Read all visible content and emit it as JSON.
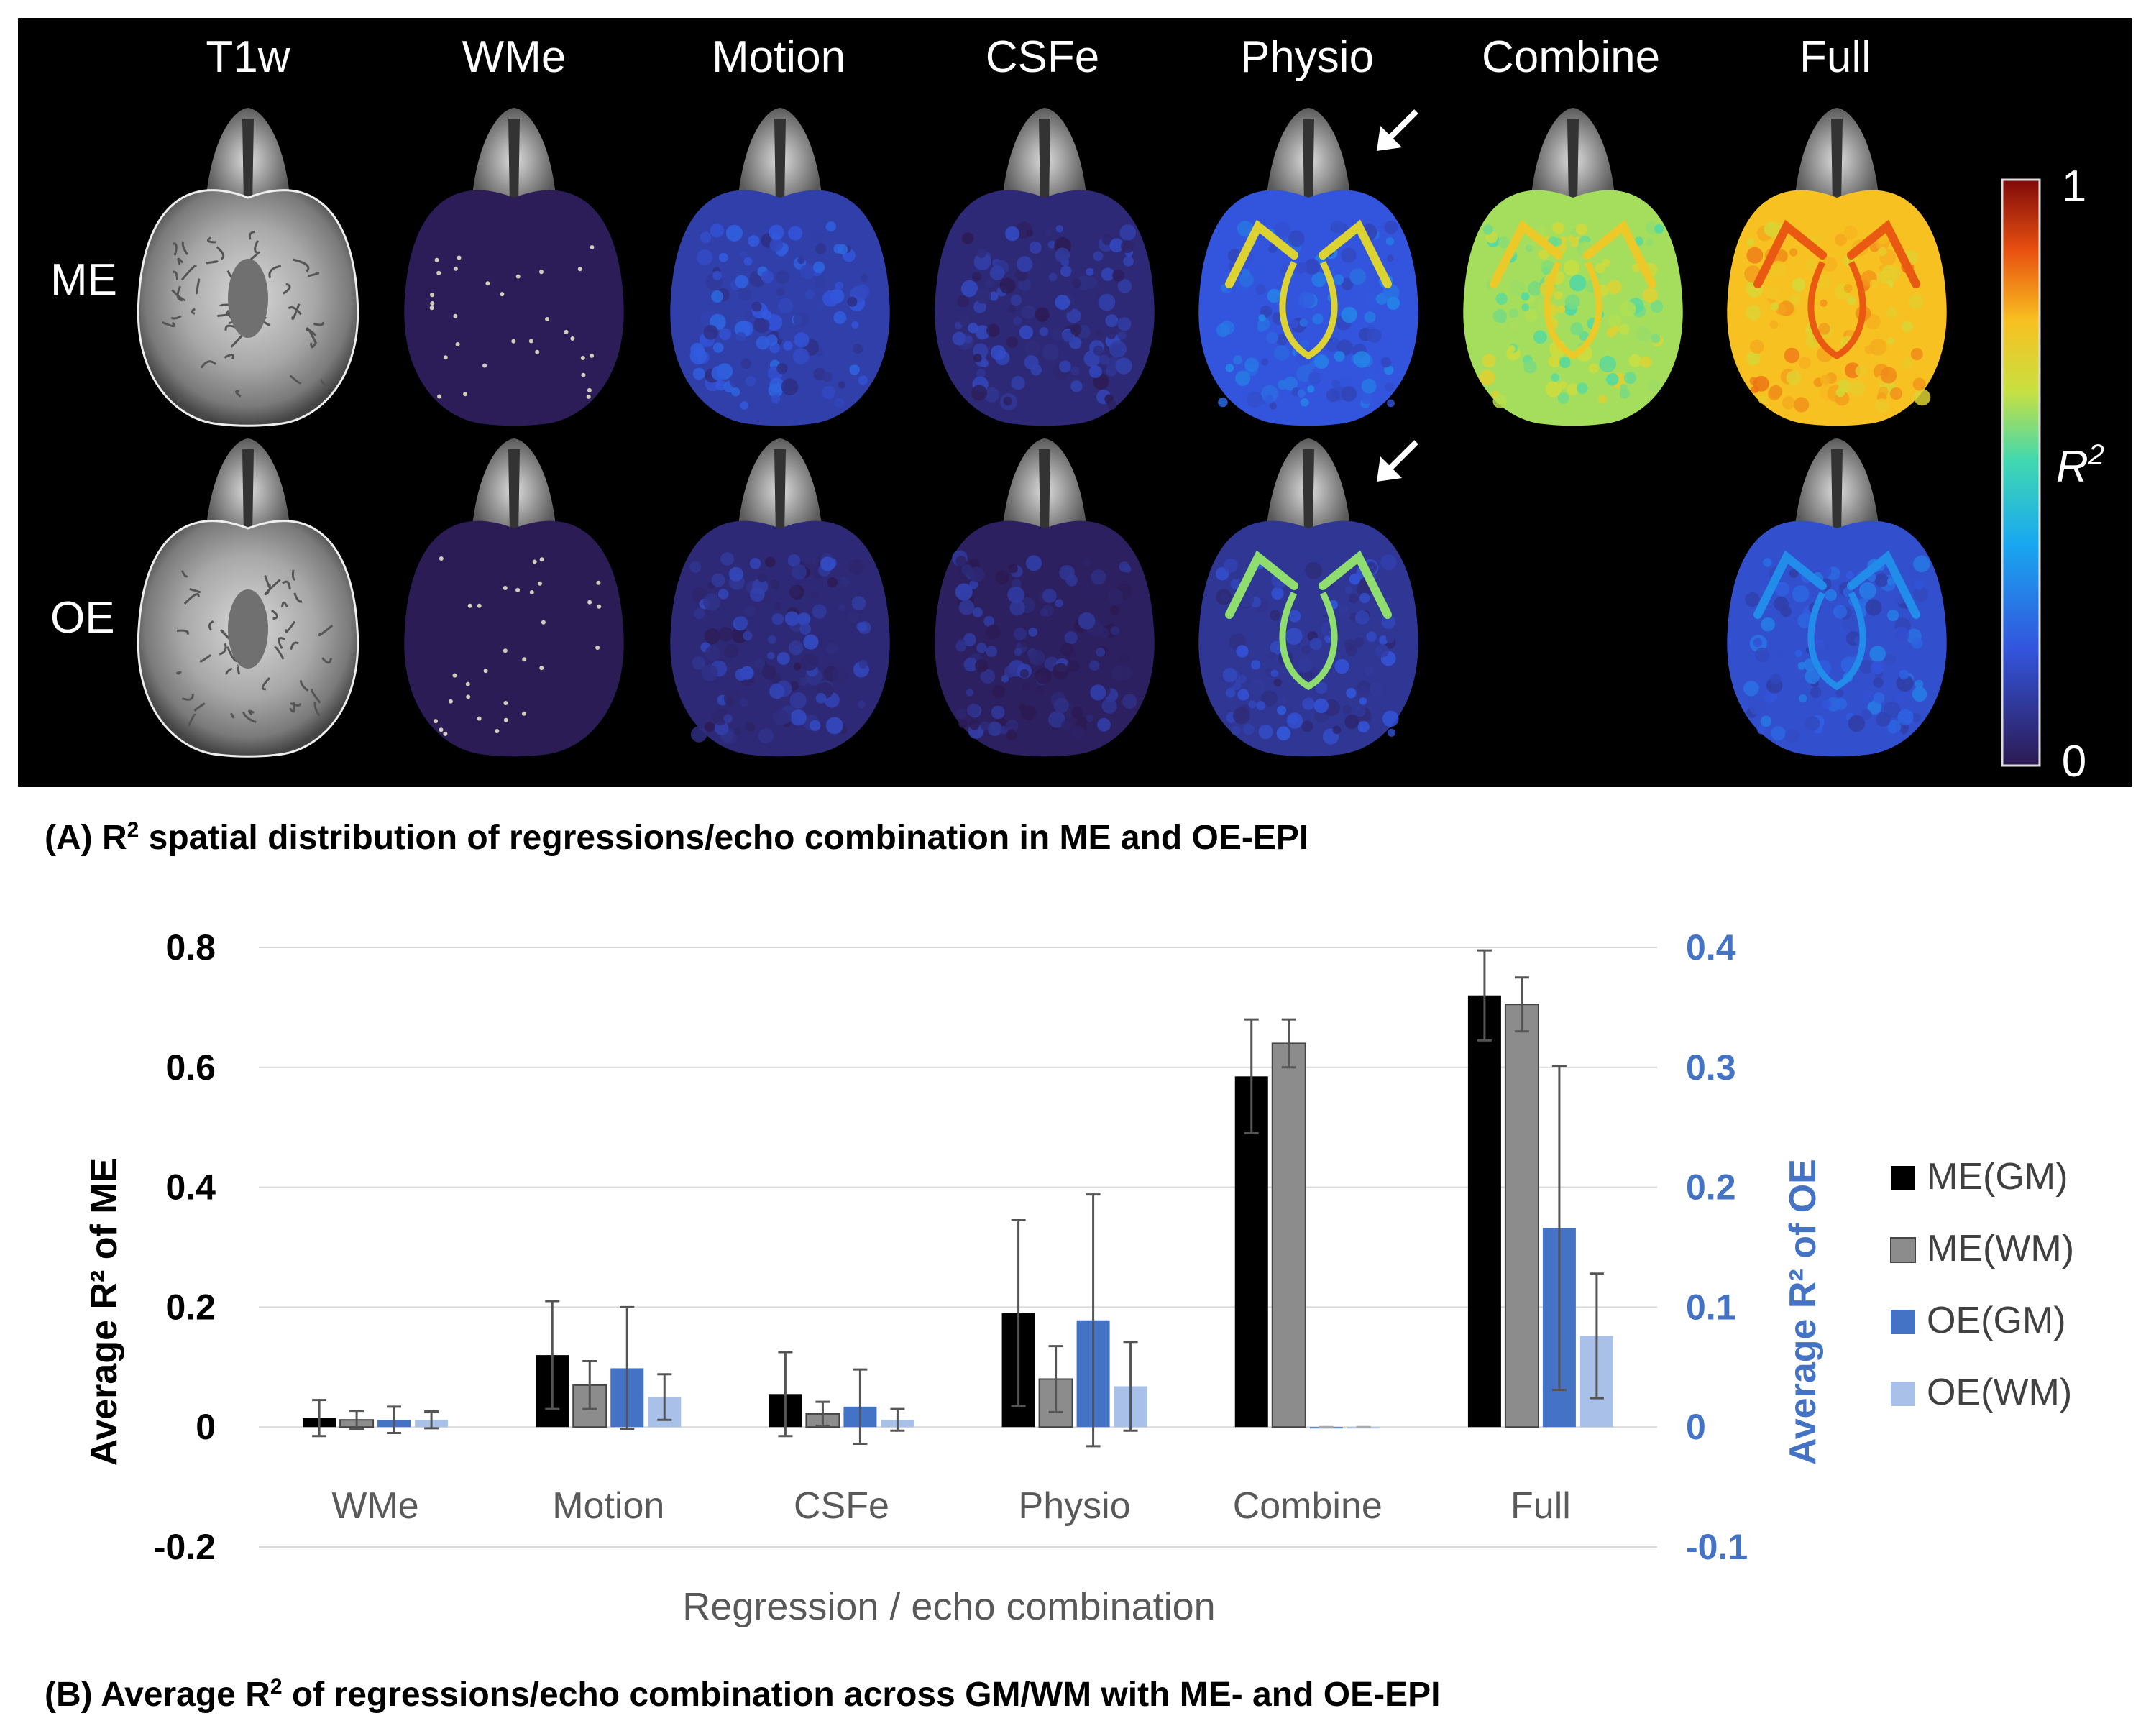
{
  "panel_a": {
    "column_labels": [
      "T1w",
      "WMe",
      "Motion",
      "CSFe",
      "Physio",
      "Combine",
      "Full"
    ],
    "row_labels": [
      "ME",
      "OE"
    ],
    "colorbar": {
      "max_label": "1",
      "min_label": "0",
      "axis_label": "R",
      "axis_label_sup": "2"
    },
    "caption_lead": "(A) R",
    "caption_sup": "2",
    "caption_rest": " spatial distribution of regressions/echo combination in ME and OE-EPI",
    "maps": [
      {
        "row": "ME",
        "column": "WMe",
        "mean": 0.01
      },
      {
        "row": "ME",
        "column": "Motion",
        "mean": 0.12
      },
      {
        "row": "ME",
        "column": "CSFe",
        "mean": 0.05
      },
      {
        "row": "ME",
        "column": "Physio",
        "mean": 0.19
      },
      {
        "row": "ME",
        "column": "Combine",
        "mean": 0.58
      },
      {
        "row": "ME",
        "column": "Full",
        "mean": 0.72
      },
      {
        "row": "OE",
        "column": "WMe",
        "mean": 0.005
      },
      {
        "row": "OE",
        "column": "Motion",
        "mean": 0.05
      },
      {
        "row": "OE",
        "column": "CSFe",
        "mean": 0.02
      },
      {
        "row": "OE",
        "column": "Physio",
        "mean": 0.09
      },
      {
        "row": "OE",
        "column": "Full",
        "mean": 0.17
      }
    ]
  },
  "panel_b": {
    "caption_lead": "(B) Average R",
    "caption_sup": "2",
    "caption_rest": " of regressions/echo combination across GM/WM with ME- and OE-EPI"
  },
  "colors": {
    "me_gm": "#000000",
    "me_wm": "#8c8c8c",
    "oe_gm": "#4472c4",
    "oe_wm": "#a9c1e8",
    "oe_axis": "#4472c4",
    "grid": "#d9d9d9",
    "category_text": "#595959"
  },
  "chart_data": {
    "type": "bar",
    "title": "",
    "xlabel": "Regression / echo combination",
    "ylabel_left": "Average R² of ME",
    "ylabel_right": "Average R² of OE",
    "ylim_left": [
      -0.2,
      0.8
    ],
    "ylim_right": [
      -0.1,
      0.4
    ],
    "yticks_left": [
      "0.8",
      "0.6",
      "0.4",
      "0.2",
      "0",
      "-0.2"
    ],
    "yticks_right": [
      "0.4",
      "0.3",
      "0.2",
      "0.1",
      "0",
      "-0.1"
    ],
    "grid": true,
    "legend_position": "right",
    "categories": [
      "WMe",
      "Motion",
      "CSFe",
      "Physio",
      "Combine",
      "Full"
    ],
    "series": [
      {
        "name": "ME(GM)",
        "axis": "left",
        "values": [
          0.015,
          0.12,
          0.055,
          0.19,
          0.585,
          0.72
        ],
        "errors": [
          0.03,
          0.09,
          0.07,
          0.155,
          0.095,
          0.075
        ]
      },
      {
        "name": "ME(WM)",
        "axis": "left",
        "values": [
          0.012,
          0.07,
          0.022,
          0.08,
          0.64,
          0.705
        ],
        "errors": [
          0.015,
          0.04,
          0.02,
          0.055,
          0.04,
          0.045
        ]
      },
      {
        "name": "OE(GM)",
        "axis": "right",
        "values": [
          0.006,
          0.049,
          0.017,
          0.089,
          0.0,
          0.166
        ],
        "errors": [
          0.011,
          0.051,
          0.031,
          0.105,
          0.0,
          0.135
        ]
      },
      {
        "name": "OE(WM)",
        "axis": "right",
        "values": [
          0.006,
          0.025,
          0.006,
          0.034,
          0.0,
          0.076
        ],
        "errors": [
          0.007,
          0.019,
          0.009,
          0.037,
          0.0,
          0.052
        ]
      }
    ]
  }
}
